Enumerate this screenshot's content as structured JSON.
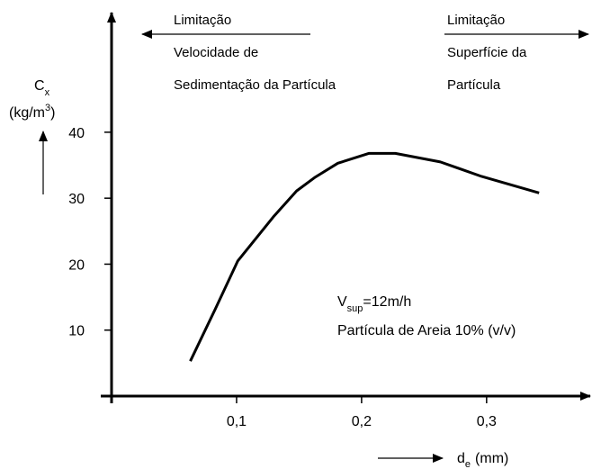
{
  "chart_data": {
    "type": "line",
    "y_label": {
      "main": "C",
      "sub": "x",
      "unit_open": "(kg/m",
      "unit_sup": "3",
      "unit_close": ")"
    },
    "x_label": {
      "main": "d",
      "sub": "e",
      "unit": "(mm)"
    },
    "annotations": {
      "left": [
        "Limitação",
        "Velocidade de",
        "Sedimentação da Partícula"
      ],
      "right": [
        "Limitação",
        "Superfície da",
        "Partícula"
      ],
      "condition": {
        "main": "V",
        "sub": "sup",
        "rest": "=12m/h"
      },
      "particle": "Partícula de Areia 10% (v/v)"
    },
    "x": [
      0.063,
      0.083,
      0.101,
      0.13,
      0.148,
      0.163,
      0.181,
      0.206,
      0.227,
      0.263,
      0.296,
      0.342
    ],
    "series": [
      {
        "color": "#000000",
        "values": [
          5.3,
          13.2,
          20.5,
          27.3,
          31.1,
          33.2,
          35.3,
          36.8,
          36.8,
          35.5,
          33.3,
          30.8
        ]
      }
    ],
    "xlim": [
      0,
      0.38
    ],
    "ylim": [
      0,
      58
    ],
    "xticks": [
      {
        "value": 0.1,
        "label": "0,1"
      },
      {
        "value": 0.2,
        "label": "0,2"
      },
      {
        "value": 0.3,
        "label": "0,3"
      }
    ],
    "yticks": [
      10,
      20,
      30,
      40
    ]
  }
}
